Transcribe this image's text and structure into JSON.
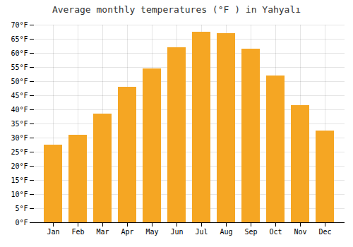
{
  "chart_data": {
    "type": "bar",
    "title": "Average monthly temperatures (°F ) in Yahyalı",
    "categories": [
      "Jan",
      "Feb",
      "Mar",
      "Apr",
      "May",
      "Jun",
      "Jul",
      "Aug",
      "Sep",
      "Oct",
      "Nov",
      "Dec"
    ],
    "values": [
      27.5,
      31,
      38.5,
      48,
      54.5,
      62,
      67.5,
      67,
      61.5,
      52,
      41.5,
      32.5
    ],
    "color": "#F5A623",
    "ylim": [
      0,
      70
    ],
    "yticks": [
      {
        "value": 0,
        "label": "0°F"
      },
      {
        "value": 5,
        "label": "5°F"
      },
      {
        "value": 10,
        "label": "10°F"
      },
      {
        "value": 15,
        "label": "15°F"
      },
      {
        "value": 20,
        "label": "20°F"
      },
      {
        "value": 25,
        "label": "25°F"
      },
      {
        "value": 30,
        "label": "30°F"
      },
      {
        "value": 35,
        "label": "35°F"
      },
      {
        "value": 40,
        "label": "40°F"
      },
      {
        "value": 45,
        "label": "45°F"
      },
      {
        "value": 50,
        "label": "50°F"
      },
      {
        "value": 55,
        "label": "55°F"
      },
      {
        "value": 60,
        "label": "60°F"
      },
      {
        "value": 65,
        "label": "65°F"
      },
      {
        "value": 70,
        "label": "70°F"
      }
    ],
    "grid": true
  }
}
